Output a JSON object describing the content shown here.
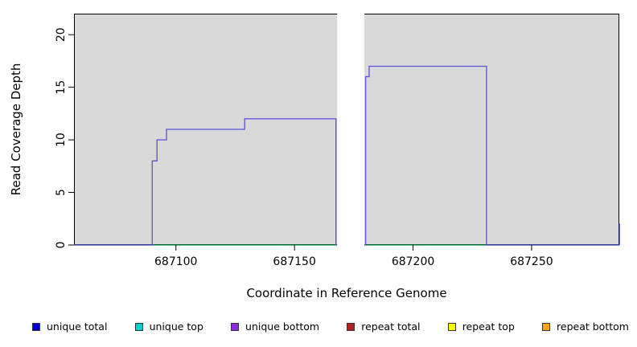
{
  "chart_data": {
    "type": "line",
    "title": "",
    "xlabel": "Coordinate in Reference Genome",
    "ylabel": "Read Coverage Depth",
    "xlim": [
      687057,
      687287
    ],
    "ylim": [
      0,
      22
    ],
    "xticks": [
      687100,
      687150,
      687200,
      687250
    ],
    "xtick_labels": [
      "687100",
      "687150",
      "687200",
      "687250"
    ],
    "yticks": [
      0,
      5,
      10,
      15,
      20
    ],
    "ytick_labels": [
      "0",
      "5",
      "10",
      "15",
      "20"
    ],
    "grid": false,
    "plot_background": "#d9d9d9",
    "page_background": "#ffffff",
    "axis_color": "#000000",
    "masked_region": {
      "x_start": 687168,
      "x_end": 687179.5,
      "color": "#ffffff"
    },
    "series": [
      {
        "id": "unique-top-baseline",
        "name": "unique top",
        "color": "#00A550",
        "segments": [
          [
            [
              687057,
              0
            ],
            [
              687287,
              0
            ]
          ]
        ]
      },
      {
        "id": "unique-bottom-coverage",
        "name": "unique bottom",
        "color": "#5D4FDB",
        "segments": [
          [
            [
              687057,
              0
            ],
            [
              687090,
              0
            ],
            [
              687090,
              8
            ],
            [
              687092,
              8
            ],
            [
              687092,
              10
            ],
            [
              687096,
              10
            ],
            [
              687096,
              11
            ],
            [
              687129,
              11
            ],
            [
              687129,
              12
            ],
            [
              687167.5,
              12
            ],
            [
              687167.5,
              0
            ],
            [
              687168,
              0
            ]
          ],
          [
            [
              687179.5,
              0
            ],
            [
              687180,
              0
            ],
            [
              687180,
              16
            ],
            [
              687181.5,
              16
            ],
            [
              687181.5,
              17
            ],
            [
              687231,
              17
            ],
            [
              687231,
              0
            ],
            [
              687287,
              0
            ]
          ]
        ]
      },
      {
        "id": "unique-total-edge",
        "name": "unique total",
        "color": "#1A1AE6",
        "segments": [
          [
            [
              687287,
              0
            ],
            [
              687287,
              2
            ]
          ]
        ]
      }
    ],
    "legend": {
      "position": "bottom",
      "items": [
        {
          "label": "unique total",
          "color": "#0000CD"
        },
        {
          "label": "unique top",
          "color": "#00CED1"
        },
        {
          "label": "unique bottom",
          "color": "#8A2BE2"
        },
        {
          "label": "repeat total",
          "color": "#B22222"
        },
        {
          "label": "repeat top",
          "color": "#FFFF00"
        },
        {
          "label": "repeat bottom",
          "color": "#FFA500"
        }
      ]
    }
  }
}
